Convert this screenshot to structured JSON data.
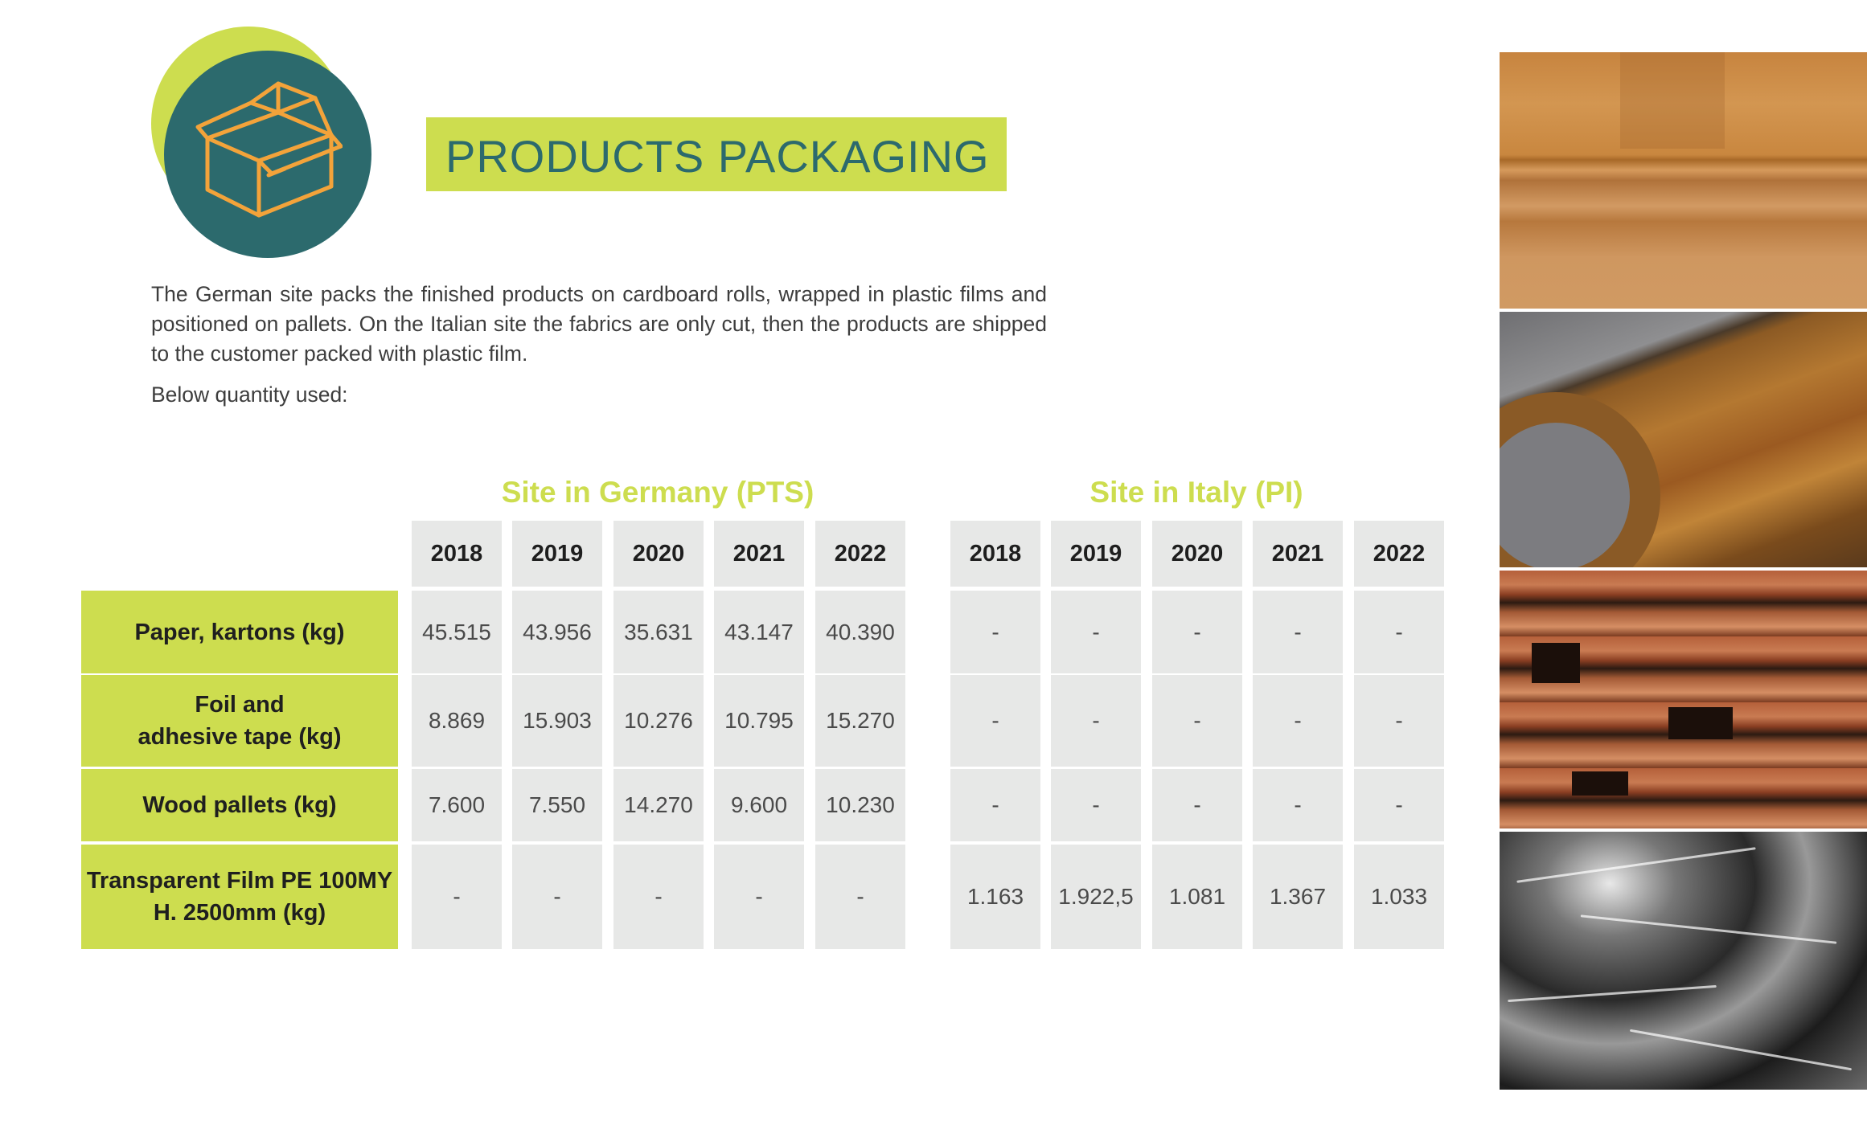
{
  "header": {
    "title": "PRODUCTS PACKAGING",
    "icon": "open-box-icon"
  },
  "intro": {
    "paragraph": "The German site packs the finished products on cardboard rolls, wrapped in plastic films and positioned on pallets. On the Italian site the fabrics are only cut, then the products are shipped to the customer packed with plastic film.",
    "below": "Below quantity used:"
  },
  "colors": {
    "lime": "#cddd4f",
    "teal": "#2c6a6d",
    "cell_bg": "#e7e8e7"
  },
  "table": {
    "site_germany": "Site in Germany (PTS)",
    "site_italy": "Site in Italy (PI)",
    "germany_years": [
      "2018",
      "2019",
      "2020",
      "2021",
      "2022"
    ],
    "italy_years": [
      "2018",
      "2019",
      "2020",
      "2021",
      "2022"
    ],
    "rows": [
      {
        "label": [
          "Paper, kartons  (kg)"
        ],
        "germany": [
          "45.515",
          "43.956",
          "35.631",
          "43.147",
          "40.390"
        ],
        "italy": [
          "-",
          "-",
          "-",
          "-",
          "-"
        ]
      },
      {
        "label": [
          "Foil and",
          "adhesive tape (kg)"
        ],
        "germany": [
          "8.869",
          "15.903",
          "10.276",
          "10.795",
          "15.270"
        ],
        "italy": [
          "-",
          "-",
          "-",
          "-",
          "-"
        ]
      },
      {
        "label": [
          "Wood pallets (kg)"
        ],
        "germany": [
          "7.600",
          "7.550",
          "14.270",
          "9.600",
          "10.230"
        ],
        "italy": [
          "-",
          "-",
          "-",
          "-",
          "-"
        ]
      },
      {
        "label": [
          "Transparent Film PE 100MY",
          "H. 2500mm  (kg)"
        ],
        "germany": [
          "-",
          "-",
          "-",
          "-",
          "-"
        ],
        "italy": [
          "1.163",
          "1.922,5",
          "1.081",
          "1.367",
          "1.033"
        ]
      }
    ]
  },
  "photos": [
    "cardboard-photo",
    "packing-tape-photo",
    "wood-pallets-photo",
    "plastic-film-photo"
  ]
}
